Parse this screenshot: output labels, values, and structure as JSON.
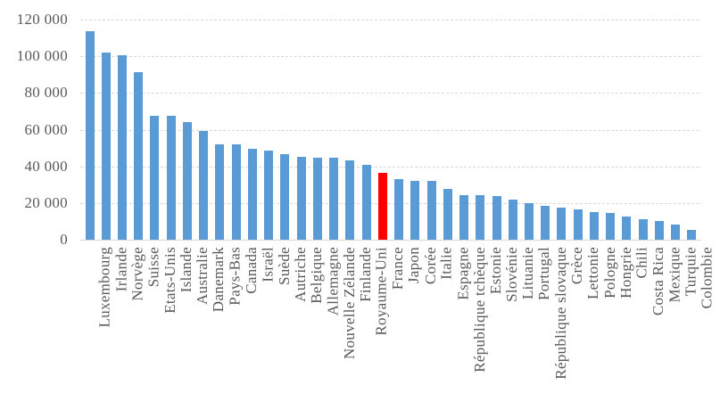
{
  "chart_data": {
    "type": "bar",
    "title": "",
    "categories": [
      "Luxembourg",
      "Irlande",
      "Norvège",
      "Suisse",
      "Etats-Unis",
      "Islande",
      "Australie",
      "Danemark",
      "Pays-Bas",
      "Canada",
      "Israël",
      "Suède",
      "Autriche",
      "Belgique",
      "Allemagne",
      "Nouvelle Zélande",
      "Finlande",
      "Royaume-Uni",
      "France",
      "Japon",
      "Corée",
      "Italie",
      "Espagne",
      "République tchèque",
      "Estonie",
      "Slovénie",
      "Lituanie",
      "Portugal",
      "République slovaque",
      "Grèce",
      "Lettonie",
      "Pologne",
      "Hongrie",
      "Chili",
      "Costa Rica",
      "Mexique",
      "Turquie",
      "Colombie"
    ],
    "values": [
      113500,
      102000,
      100500,
      91500,
      67500,
      67500,
      64000,
      59500,
      52000,
      52000,
      49500,
      48500,
      46500,
      45000,
      44500,
      44500,
      43000,
      41000,
      36500,
      33000,
      32000,
      32000,
      27500,
      24500,
      24500,
      24000,
      22000,
      20000,
      18500,
      17500,
      16500,
      15000,
      14500,
      12500,
      11000,
      10000,
      8500,
      5500
    ],
    "xlabel": "",
    "ylabel": "",
    "ylim": [
      0,
      120000
    ],
    "yticks": [
      {
        "value": 0,
        "label": "0"
      },
      {
        "value": 20000,
        "label": "20 000"
      },
      {
        "value": 40000,
        "label": "40 000"
      },
      {
        "value": 60000,
        "label": "60 000"
      },
      {
        "value": 80000,
        "label": "80 000"
      },
      {
        "value": 100000,
        "label": "100 000"
      },
      {
        "value": 120000,
        "label": "120 000"
      }
    ],
    "grid": true,
    "legend": "none",
    "colors": {
      "bar": "#5b9bd5",
      "highlight": "#ff0000",
      "gridline": "#d9d9d9",
      "axis_label": "#595959"
    },
    "highlight": {
      "index": 18,
      "category": "France"
    }
  }
}
